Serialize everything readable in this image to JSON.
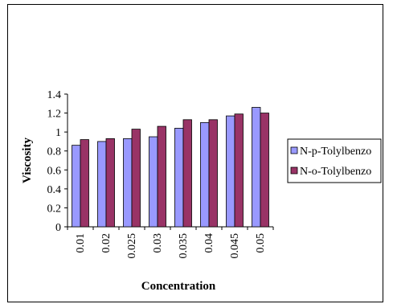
{
  "chart_data": {
    "type": "bar",
    "categories": [
      "0.01",
      "0.02",
      "0.025",
      "0.03",
      "0.035",
      "0.04",
      "0.045",
      "0.05"
    ],
    "series": [
      {
        "name": "N-p-Tolylbenzo",
        "color": "#9999FF",
        "values": [
          0.86,
          0.9,
          0.93,
          0.95,
          1.04,
          1.1,
          1.17,
          1.26
        ]
      },
      {
        "name": "N-o-Tolylbenzo",
        "color": "#993366",
        "values": [
          0.92,
          0.93,
          1.03,
          1.06,
          1.13,
          1.13,
          1.19,
          1.2
        ]
      }
    ],
    "title": "",
    "xlabel": "Concentration",
    "ylabel": "Viscosity",
    "ylim": [
      0,
      1.4
    ],
    "yticks": [
      "0",
      "0.2",
      "0.4",
      "0.6",
      "0.8",
      "1",
      "1.2",
      "1.4"
    ],
    "grid": false,
    "legend_position": "right"
  }
}
